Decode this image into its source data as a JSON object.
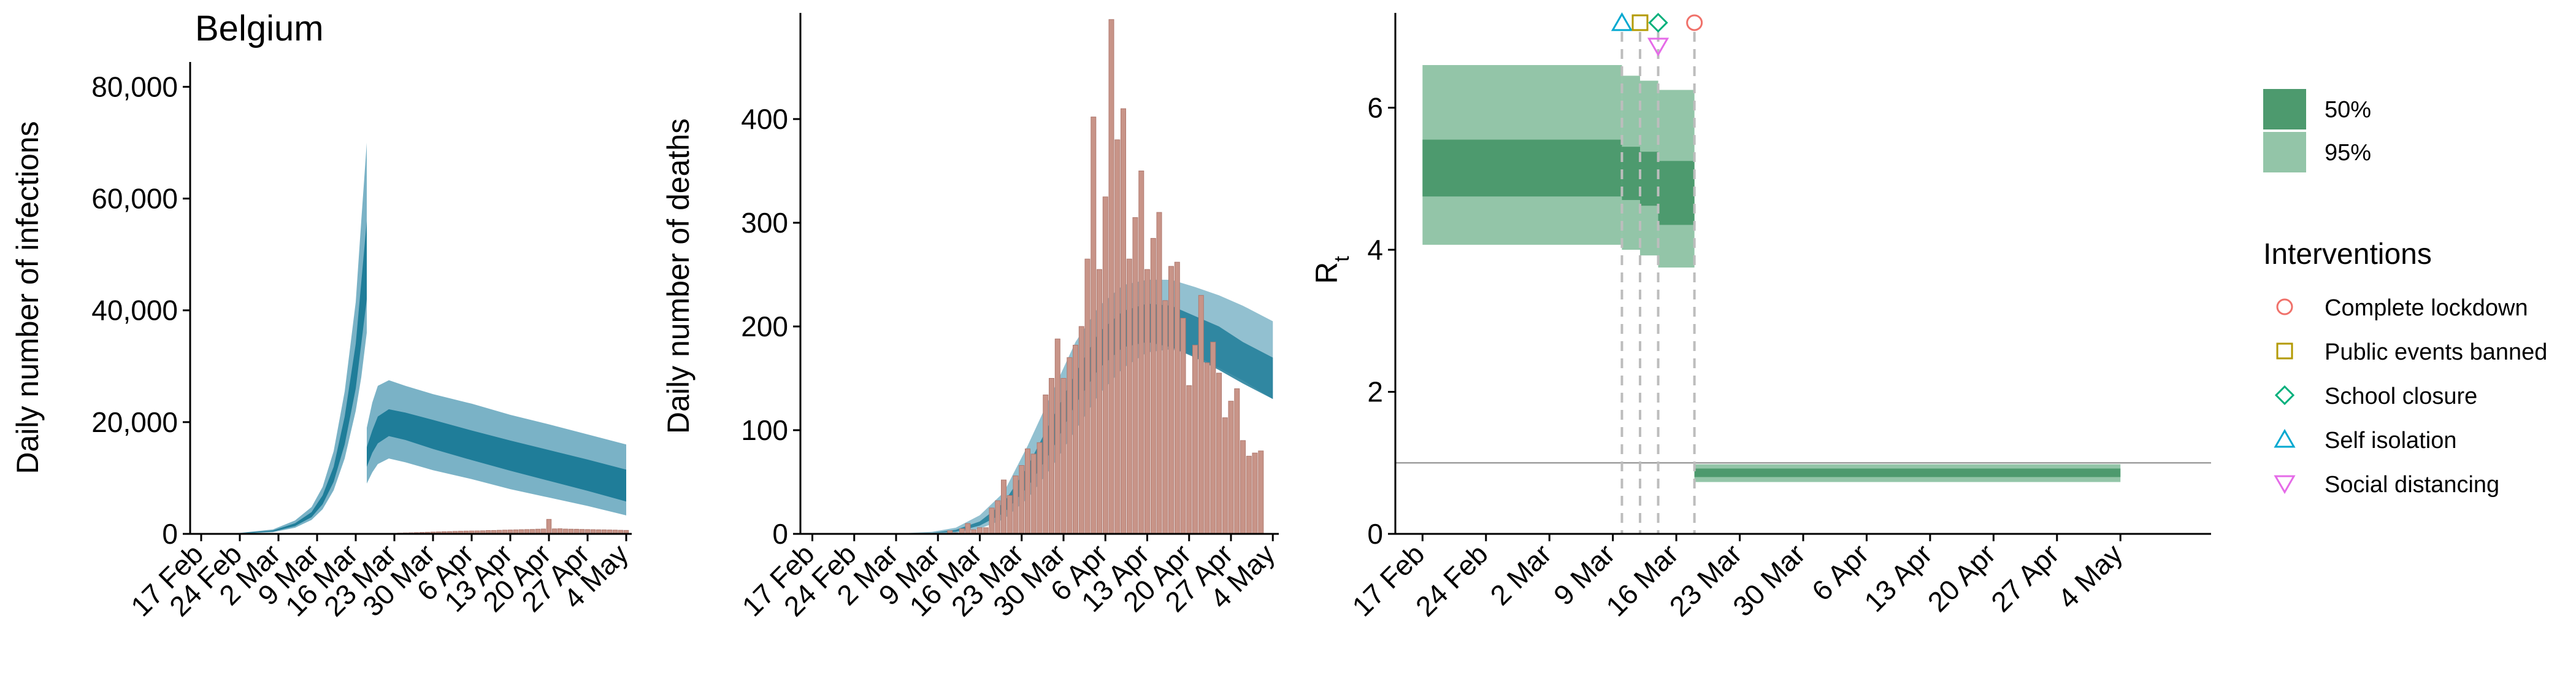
{
  "colors": {
    "band50_blue": "#1f7d99",
    "band95_blue": "#7ab2c6",
    "bar_fill": "#c89488",
    "bar_stroke": "#b07a70",
    "band50_green": "#4d9a6e",
    "band95_green": "#93c5a8",
    "dashed": "#bdbdbd",
    "ref_line": "#9e9e9e",
    "marker_lockdown": "#f0716a",
    "marker_events": "#b39a00",
    "marker_school": "#00b07c",
    "marker_self": "#00a8d0",
    "marker_distancing": "#e56be8"
  },
  "chart_data": [
    {
      "type": "area",
      "title": "Belgium",
      "xlabel": "",
      "ylabel": "Daily number of infections",
      "ylim": [
        0,
        84000
      ],
      "yticks": [
        0,
        20000,
        40000,
        60000,
        80000
      ],
      "ytick_labels": [
        "0",
        "20,000",
        "40,000",
        "60,000",
        "80,000"
      ],
      "x_start": "2020-02-15",
      "x_end": "2020-05-05",
      "xticks": [
        "2020-02-17",
        "2020-02-24",
        "2020-03-02",
        "2020-03-09",
        "2020-03-16",
        "2020-03-23",
        "2020-03-30",
        "2020-04-06",
        "2020-04-13",
        "2020-04-20",
        "2020-04-27",
        "2020-05-04"
      ],
      "xtick_labels": [
        "17 Feb",
        "24 Feb",
        "2 Mar",
        "9 Mar",
        "16 Mar",
        "23 Mar",
        "30 Mar",
        "6 Apr",
        "13 Apr",
        "20 Apr",
        "27 Apr",
        "4 May"
      ],
      "bands": {
        "x": [
          "2020-02-15",
          "2020-02-24",
          "2020-03-01",
          "2020-03-05",
          "2020-03-08",
          "2020-03-10",
          "2020-03-12",
          "2020-03-14",
          "2020-03-16",
          "2020-03-17",
          "2020-03-18",
          "2020-03-18",
          "2020-03-19",
          "2020-03-20",
          "2020-03-22",
          "2020-03-25",
          "2020-03-30",
          "2020-04-06",
          "2020-04-13",
          "2020-04-20",
          "2020-04-27",
          "2020-05-04"
        ],
        "median": [
          0,
          100,
          500,
          1600,
          3400,
          6000,
          10500,
          18000,
          30000,
          40000,
          49000,
          13500,
          16500,
          18500,
          19700,
          19000,
          17500,
          15500,
          13500,
          11800,
          10000,
          8000
        ],
        "lower50": [
          0,
          80,
          420,
          1400,
          3000,
          5300,
          9300,
          16000,
          26000,
          34000,
          42000,
          12000,
          14500,
          16200,
          17500,
          16800,
          15200,
          13200,
          11300,
          9500,
          7700,
          5800
        ],
        "upper50": [
          0,
          130,
          600,
          1900,
          3900,
          6900,
          12000,
          21000,
          34000,
          45000,
          56000,
          15500,
          18500,
          21000,
          22300,
          21700,
          20400,
          18500,
          16700,
          15000,
          13300,
          11500
        ],
        "lower95": [
          0,
          50,
          300,
          1100,
          2500,
          4400,
          7800,
          13500,
          22000,
          28000,
          36000,
          9000,
          11000,
          12500,
          13500,
          12800,
          11400,
          9800,
          8000,
          6500,
          5000,
          3300
        ],
        "upper95": [
          0,
          180,
          800,
          2400,
          4800,
          8400,
          14800,
          25500,
          41500,
          56000,
          70000,
          19000,
          23500,
          26500,
          27500,
          26500,
          25000,
          23300,
          21300,
          19600,
          17800,
          16000
        ]
      },
      "bars": {
        "start": "2020-03-14",
        "values": [
          8,
          10,
          14,
          20,
          25,
          30,
          40,
          55,
          75,
          110,
          140,
          175,
          200,
          230,
          260,
          300,
          330,
          360,
          390,
          420,
          450,
          480,
          500,
          530,
          540,
          560,
          600,
          620,
          650,
          680,
          700,
          730,
          760,
          780,
          800,
          850,
          880,
          2600,
          900,
          920,
          870,
          850,
          830,
          800,
          780,
          760,
          740,
          720,
          700,
          680,
          650,
          630
        ]
      }
    },
    {
      "type": "area",
      "title": "",
      "xlabel": "",
      "ylabel": "Daily number of deaths",
      "ylim": [
        0,
        500
      ],
      "yticks": [
        0,
        100,
        200,
        300,
        400
      ],
      "ytick_labels": [
        "0",
        "100",
        "200",
        "300",
        "400"
      ],
      "x_start": "2020-02-15",
      "x_end": "2020-05-05",
      "xticks": [
        "2020-02-17",
        "2020-02-24",
        "2020-03-02",
        "2020-03-09",
        "2020-03-16",
        "2020-03-23",
        "2020-03-30",
        "2020-04-06",
        "2020-04-13",
        "2020-04-20",
        "2020-04-27",
        "2020-05-04"
      ],
      "xtick_labels": [
        "17 Feb",
        "24 Feb",
        "2 Mar",
        "9 Mar",
        "16 Mar",
        "23 Mar",
        "30 Mar",
        "6 Apr",
        "13 Apr",
        "20 Apr",
        "27 Apr",
        "4 May"
      ],
      "bands": {
        "x": [
          "2020-02-15",
          "2020-03-01",
          "2020-03-08",
          "2020-03-12",
          "2020-03-16",
          "2020-03-20",
          "2020-03-24",
          "2020-03-28",
          "2020-04-01",
          "2020-04-05",
          "2020-04-09",
          "2020-04-13",
          "2020-04-17",
          "2020-04-21",
          "2020-04-25",
          "2020-04-29",
          "2020-05-04"
        ],
        "median": [
          0,
          0,
          1,
          3,
          10,
          25,
          55,
          95,
          140,
          178,
          200,
          205,
          200,
          190,
          178,
          165,
          150
        ],
        "lower50": [
          0,
          0,
          1,
          2,
          8,
          20,
          45,
          80,
          125,
          160,
          180,
          185,
          180,
          170,
          158,
          145,
          130
        ],
        "upper50": [
          0,
          0,
          1,
          4,
          12,
          30,
          65,
          110,
          155,
          195,
          215,
          222,
          220,
          210,
          200,
          185,
          170
        ],
        "lower95": [
          0,
          0,
          0,
          1,
          5,
          14,
          34,
          64,
          100,
          135,
          160,
          175,
          178,
          172,
          160,
          148,
          130
        ],
        "upper95": [
          0,
          0,
          2,
          6,
          18,
          40,
          85,
          135,
          185,
          220,
          240,
          245,
          245,
          238,
          230,
          220,
          205
        ]
      },
      "bars": {
        "start": "2020-03-11",
        "values": [
          3,
          1,
          5,
          10,
          4,
          6,
          6,
          25,
          32,
          52,
          37,
          56,
          66,
          82,
          77,
          88,
          134,
          150,
          188,
          150,
          170,
          182,
          200,
          265,
          402,
          255,
          325,
          496,
          380,
          410,
          265,
          305,
          350,
          255,
          285,
          310,
          225,
          258,
          262,
          208,
          143,
          182,
          230,
          165,
          185,
          155,
          112,
          128,
          140,
          90,
          75,
          78,
          80
        ]
      }
    },
    {
      "type": "area",
      "title": "",
      "xlabel": "",
      "ylabel": "R",
      "ylabel_sub": "t",
      "ylim": [
        0,
        7.3
      ],
      "yticks": [
        0,
        2,
        4,
        6
      ],
      "ytick_labels": [
        "0",
        "2",
        "4",
        "6"
      ],
      "reference_line": 1,
      "x_start": "2020-02-14",
      "x_end": "2020-05-14",
      "xticks": [
        "2020-02-17",
        "2020-02-24",
        "2020-03-02",
        "2020-03-09",
        "2020-03-16",
        "2020-03-23",
        "2020-03-30",
        "2020-04-06",
        "2020-04-13",
        "2020-04-20",
        "2020-04-27",
        "2020-05-04"
      ],
      "xtick_labels": [
        "17 Feb",
        "24 Feb",
        "2 Mar",
        "9 Mar",
        "16 Mar",
        "23 Mar",
        "30 Mar",
        "6 Apr",
        "13 Apr",
        "20 Apr",
        "27 Apr",
        "4 May"
      ],
      "segments": [
        {
          "start": "2020-02-17",
          "end": "2020-03-10",
          "lower95": 4.07,
          "upper95": 6.6,
          "lower50": 4.75,
          "upper50": 5.55
        },
        {
          "start": "2020-03-10",
          "end": "2020-03-12",
          "lower95": 4.0,
          "upper95": 6.45,
          "lower50": 4.7,
          "upper50": 5.45
        },
        {
          "start": "2020-03-12",
          "end": "2020-03-14",
          "lower95": 3.92,
          "upper95": 6.38,
          "lower50": 4.62,
          "upper50": 5.38
        },
        {
          "start": "2020-03-14",
          "end": "2020-03-18",
          "lower95": 3.75,
          "upper95": 6.25,
          "lower50": 4.35,
          "upper50": 5.25
        },
        {
          "start": "2020-03-18",
          "end": "2020-05-04",
          "lower95": 0.73,
          "upper95": 0.98,
          "lower50": 0.8,
          "upper50": 0.92
        }
      ],
      "interventions": [
        {
          "name": "Self isolation",
          "date": "2020-03-10",
          "marker": "triangle-up",
          "row": 0
        },
        {
          "name": "Public events banned",
          "date": "2020-03-12",
          "marker": "square",
          "row": 0
        },
        {
          "name": "School closure",
          "date": "2020-03-14",
          "marker": "diamond",
          "row": 0
        },
        {
          "name": "Social distancing",
          "date": "2020-03-14",
          "marker": "triangle-down",
          "row": 1
        },
        {
          "name": "Complete lockdown",
          "date": "2020-03-18",
          "marker": "circle",
          "row": 0
        }
      ],
      "legend": {
        "placement": "right",
        "bands": [
          {
            "label": "50%",
            "color_key": "band50_green"
          },
          {
            "label": "95%",
            "color_key": "band95_green"
          }
        ],
        "interventions_title": "Interventions",
        "interventions": [
          {
            "label": "Complete lockdown",
            "marker": "circle",
            "color_key": "marker_lockdown"
          },
          {
            "label": "Public events banned",
            "marker": "square",
            "color_key": "marker_events"
          },
          {
            "label": "School closure",
            "marker": "diamond",
            "color_key": "marker_school"
          },
          {
            "label": "Self isolation",
            "marker": "triangle-up",
            "color_key": "marker_self"
          },
          {
            "label": "Social distancing",
            "marker": "triangle-down",
            "color_key": "marker_distancing"
          }
        ]
      }
    }
  ]
}
